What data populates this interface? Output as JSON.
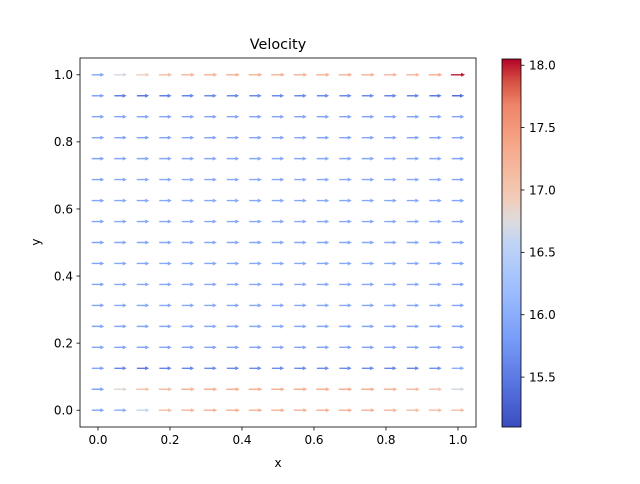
{
  "chart_data": {
    "type": "quiver",
    "title": "Velocity",
    "xlabel": "x",
    "ylabel": "y",
    "xlim": [
      -0.05,
      1.05
    ],
    "ylim": [
      -0.05,
      1.05
    ],
    "xticks": [
      "0.0",
      "0.2",
      "0.4",
      "0.6",
      "0.8",
      "1.0"
    ],
    "yticks": [
      "0.0",
      "0.2",
      "0.4",
      "0.6",
      "0.8",
      "1.0"
    ],
    "grid": false,
    "colorbar": {
      "colormap": "coolwarm",
      "range": [
        15.1,
        18.05
      ],
      "ticks": [
        "15.5",
        "16.0",
        "16.5",
        "17.0",
        "17.5",
        "18.0"
      ],
      "tick_values": [
        15.5,
        16.0,
        16.5,
        17.0,
        17.5,
        18.0
      ]
    },
    "grid_points": {
      "x_min": 0,
      "x_max": 1,
      "y_min": 0,
      "y_max": 1,
      "nx": 17,
      "ny": 17
    },
    "direction": "+x",
    "row_speeds": [
      [
        15.9,
        16.0,
        16.6,
        17.1,
        17.2,
        17.25,
        17.25,
        17.25,
        17.25,
        17.25,
        17.25,
        17.25,
        17.25,
        17.2,
        17.1,
        17.1,
        17.1
      ],
      [
        15.9,
        16.8,
        17.0,
        17.1,
        17.2,
        17.25,
        17.25,
        17.25,
        17.25,
        17.25,
        17.25,
        17.25,
        17.25,
        17.2,
        17.1,
        17.0,
        16.7
      ],
      [
        15.9,
        15.6,
        15.5,
        15.6,
        15.6,
        15.65,
        15.65,
        15.65,
        15.65,
        15.65,
        15.65,
        15.65,
        15.65,
        15.6,
        15.6,
        15.7,
        16.0
      ],
      [
        15.9,
        15.9,
        15.9,
        15.9,
        15.9,
        15.9,
        15.9,
        15.9,
        15.9,
        15.9,
        15.9,
        15.9,
        15.9,
        15.9,
        15.9,
        15.9,
        15.9
      ],
      [
        15.9,
        15.95,
        15.95,
        15.95,
        15.95,
        15.95,
        15.95,
        15.95,
        15.95,
        15.95,
        15.95,
        15.95,
        15.95,
        15.95,
        15.95,
        15.95,
        15.9
      ],
      [
        15.9,
        15.95,
        15.95,
        15.95,
        15.95,
        15.95,
        15.95,
        15.95,
        15.95,
        15.95,
        15.95,
        15.95,
        15.95,
        15.95,
        15.95,
        15.95,
        15.9
      ],
      [
        15.9,
        15.95,
        15.95,
        15.95,
        15.95,
        15.95,
        15.95,
        15.95,
        15.95,
        15.95,
        15.95,
        15.95,
        15.95,
        15.95,
        15.95,
        15.95,
        15.9
      ],
      [
        15.9,
        15.95,
        15.95,
        15.95,
        15.95,
        15.95,
        15.95,
        15.95,
        15.95,
        15.95,
        15.95,
        15.95,
        15.95,
        15.95,
        15.95,
        15.95,
        15.9
      ],
      [
        15.9,
        15.95,
        15.95,
        15.95,
        15.95,
        15.95,
        15.95,
        15.95,
        15.95,
        15.95,
        15.95,
        15.95,
        15.95,
        15.95,
        15.95,
        15.95,
        15.9
      ],
      [
        15.9,
        15.95,
        15.95,
        15.95,
        15.95,
        15.95,
        15.95,
        15.95,
        15.95,
        15.95,
        15.95,
        15.95,
        15.95,
        15.95,
        15.95,
        15.95,
        15.9
      ],
      [
        15.9,
        15.95,
        15.95,
        15.95,
        15.95,
        15.95,
        15.95,
        15.95,
        15.95,
        15.95,
        15.95,
        15.95,
        15.95,
        15.95,
        15.95,
        15.95,
        15.9
      ],
      [
        15.9,
        15.95,
        15.95,
        15.95,
        15.95,
        15.95,
        15.95,
        15.95,
        15.95,
        15.95,
        15.95,
        15.95,
        15.95,
        15.95,
        15.95,
        15.95,
        15.9
      ],
      [
        15.9,
        15.95,
        15.95,
        15.95,
        15.95,
        15.95,
        15.95,
        15.95,
        15.95,
        15.95,
        15.95,
        15.95,
        15.95,
        15.95,
        15.95,
        15.95,
        15.9
      ],
      [
        15.9,
        15.9,
        15.9,
        15.9,
        15.9,
        15.9,
        15.9,
        15.9,
        15.9,
        15.9,
        15.9,
        15.9,
        15.9,
        15.9,
        15.9,
        15.9,
        15.9
      ],
      [
        15.9,
        15.9,
        15.9,
        15.9,
        15.9,
        15.9,
        15.9,
        15.9,
        15.9,
        15.9,
        15.9,
        15.9,
        15.9,
        15.9,
        15.9,
        15.9,
        15.9
      ],
      [
        15.9,
        15.55,
        15.5,
        15.55,
        15.6,
        15.65,
        15.65,
        15.65,
        15.65,
        15.65,
        15.65,
        15.65,
        15.65,
        15.6,
        15.6,
        15.5,
        15.4
      ],
      [
        15.9,
        16.7,
        16.9,
        17.1,
        17.2,
        17.25,
        17.25,
        17.25,
        17.25,
        17.25,
        17.25,
        17.25,
        17.25,
        17.2,
        17.2,
        17.3,
        18.0
      ]
    ]
  }
}
